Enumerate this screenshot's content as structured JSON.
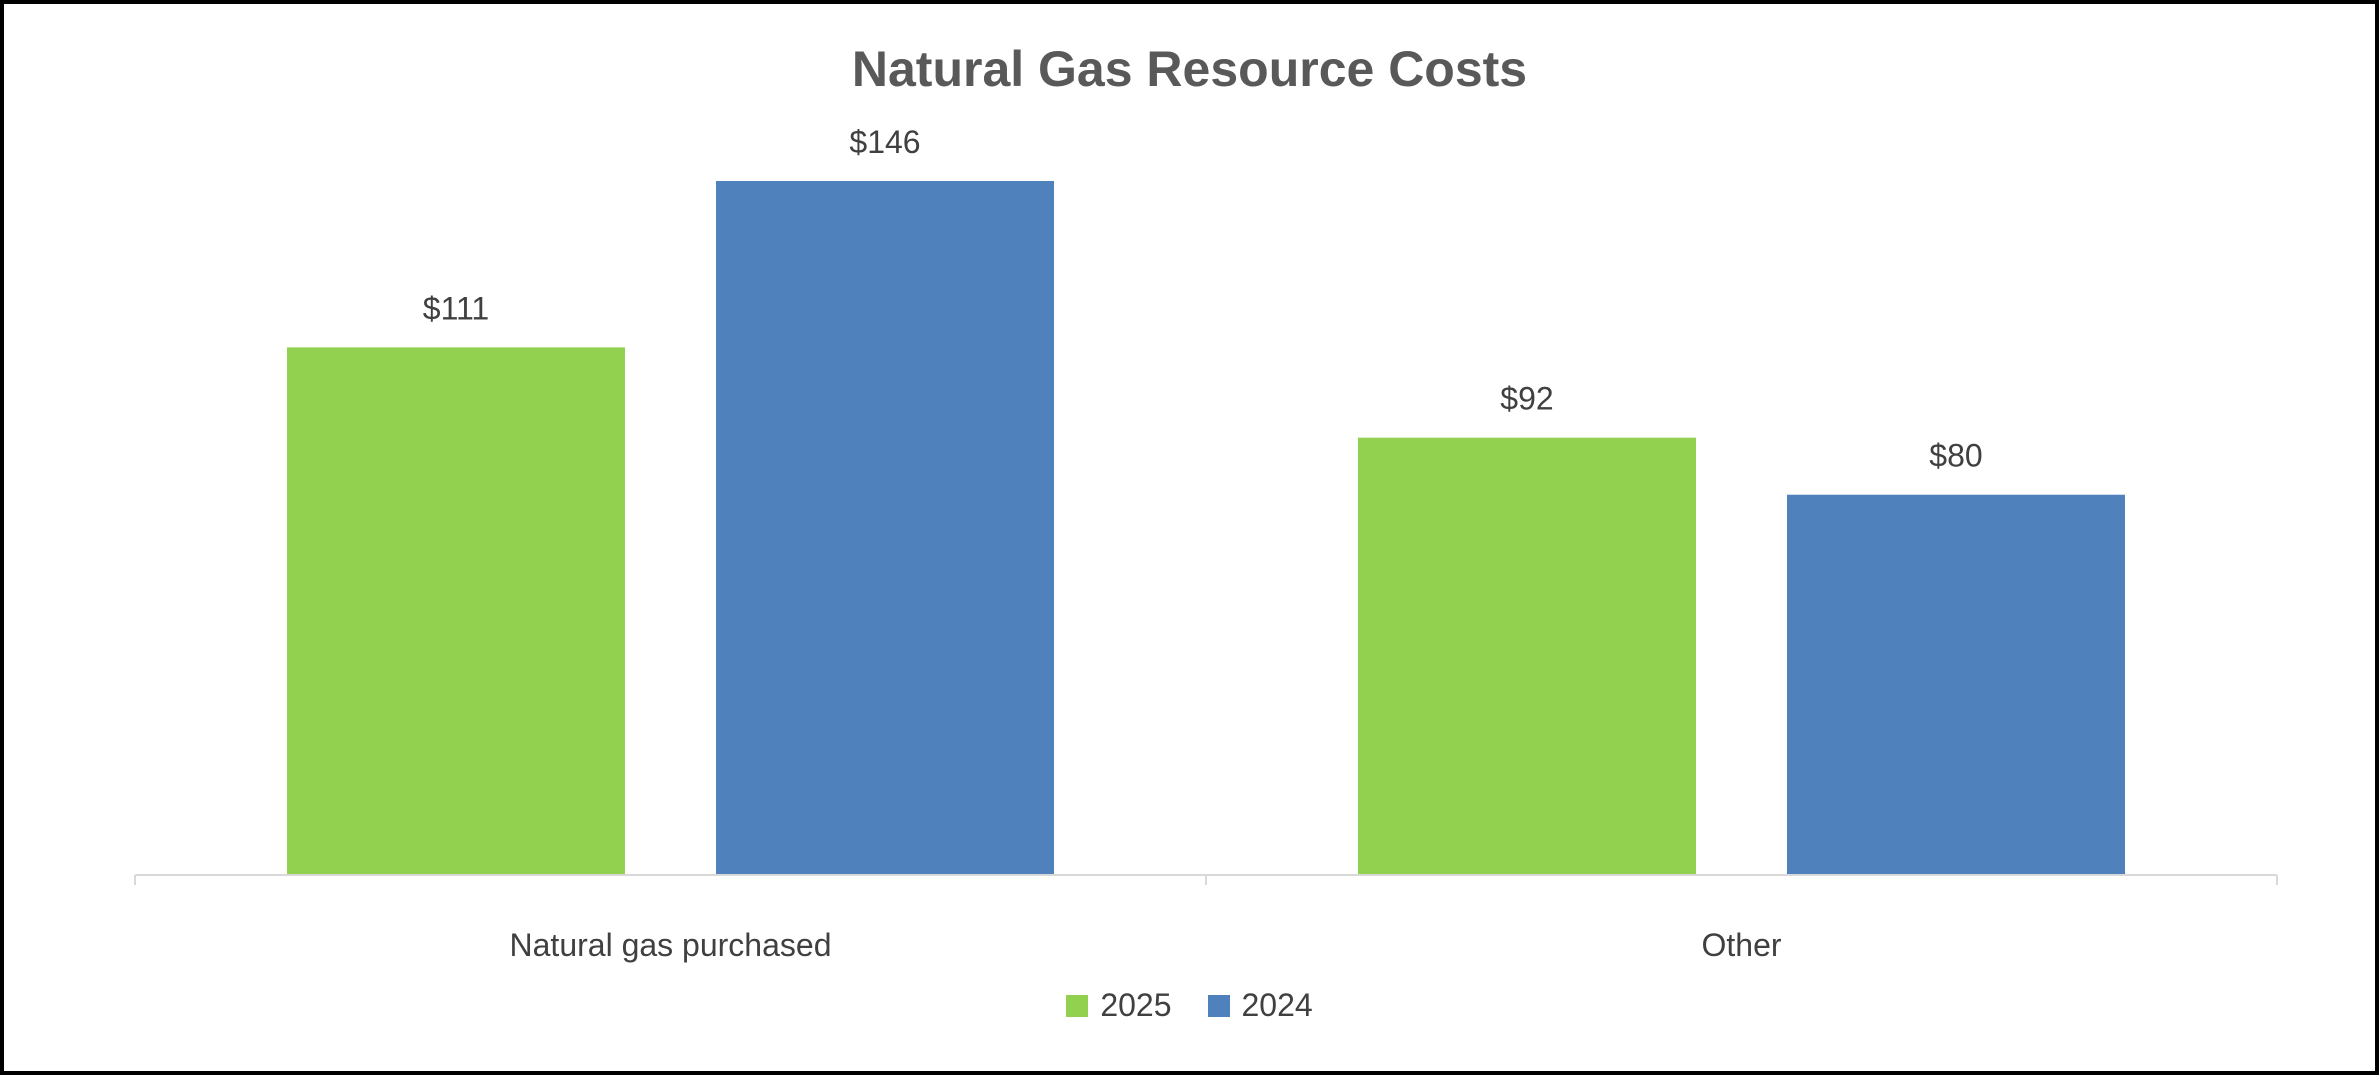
{
  "chart_data": {
    "type": "bar",
    "title": "Natural Gas Resource Costs",
    "categories": [
      "Natural gas purchased",
      "Other"
    ],
    "series": [
      {
        "name": "2025",
        "values": [
          111,
          92
        ],
        "labels": [
          "$111",
          "$92"
        ],
        "color": "#92d050"
      },
      {
        "name": "2024",
        "values": [
          146,
          80
        ],
        "labels": [
          "$146",
          "$80"
        ],
        "color": "#4f81bd"
      }
    ],
    "xlabel": "",
    "ylabel": "",
    "ylim": [
      0,
      146
    ],
    "grid": false,
    "legend_position": "bottom",
    "axis_color": "#d9d9d9",
    "label_color": "#404040",
    "title_color": "#595959"
  }
}
